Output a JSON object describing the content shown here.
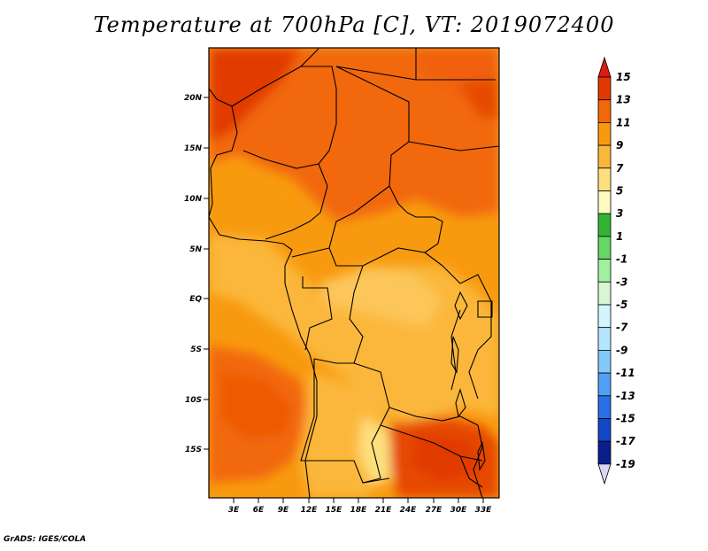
{
  "title": "Temperature at 700hPa [C], VT: 2019072400",
  "credit": "GrADS: IGES/COLA",
  "map": {
    "lat_labels": [
      "20N",
      "15N",
      "10N",
      "5N",
      "EQ",
      "5S",
      "10S",
      "15S"
    ],
    "lon_labels": [
      "3E",
      "6E",
      "9E",
      "12E",
      "15E",
      "18E",
      "21E",
      "24E",
      "27E",
      "30E",
      "33E"
    ]
  },
  "colorbar": {
    "labels": [
      "15",
      "13",
      "11",
      "9",
      "7",
      "5",
      "3",
      "1",
      "-1",
      "-3",
      "-5",
      "-7",
      "-9",
      "-11",
      "-13",
      "-15",
      "-17",
      "-19"
    ],
    "colors": [
      "#a01000",
      "#e13a00",
      "#f2670a",
      "#f89a10",
      "#fbb73a",
      "#fde07e",
      "#fffac0",
      "#32b432",
      "#64d764",
      "#a0f0a0",
      "#d7f7d2",
      "#d2f5ff",
      "#b4e6ff",
      "#82c8fa",
      "#50a0f5",
      "#2870e6",
      "#1446c8",
      "#0a1e8c",
      "#000060",
      "#d0d0f0"
    ],
    "top_color": "#e01810",
    "bottom_color": "#d8d8f4"
  }
}
